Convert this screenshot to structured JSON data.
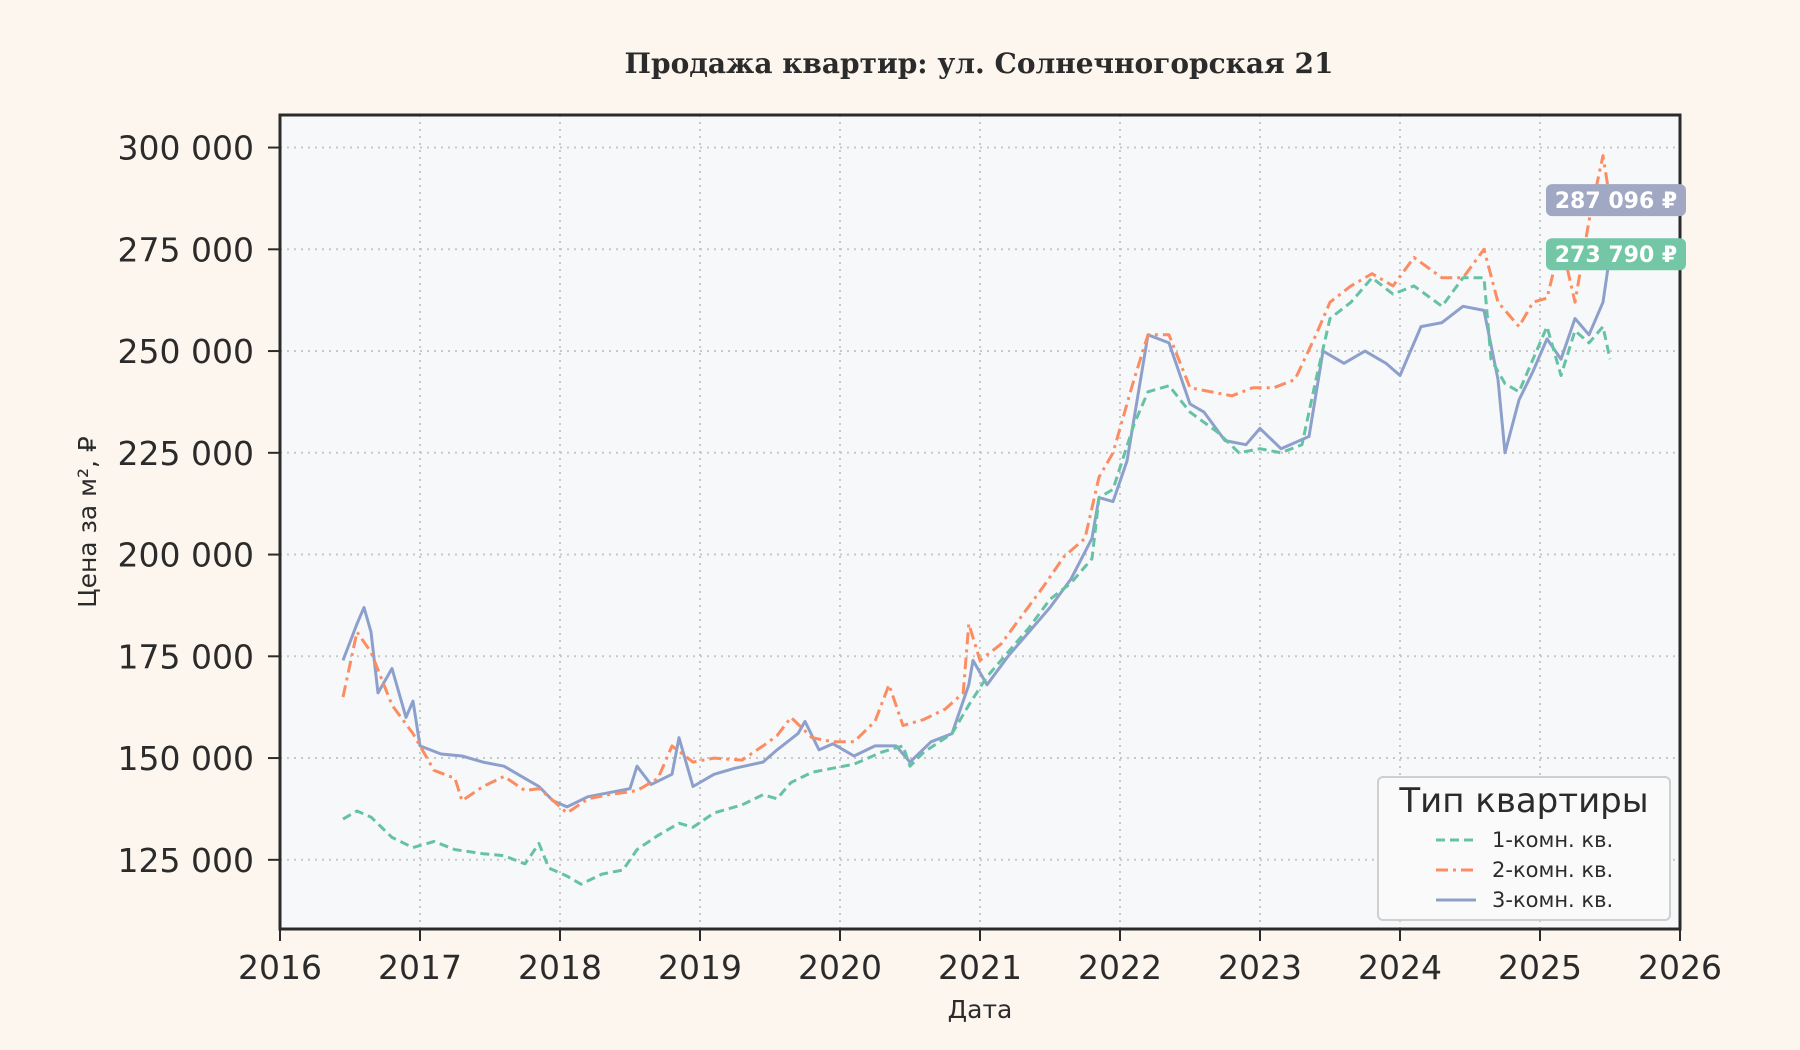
{
  "chart_data": {
    "type": "line",
    "title": "Продажа квартир: ул. Солнечногорская 21",
    "xlabel": "Дата",
    "ylabel": "Цена за м², ₽",
    "xlim": [
      2016,
      2026
    ],
    "ylim": [
      108000,
      308000
    ],
    "x_ticks": [
      2016,
      2017,
      2018,
      2019,
      2020,
      2021,
      2022,
      2023,
      2024,
      2025,
      2026
    ],
    "x_tick_labels": [
      "2016",
      "2017",
      "2018",
      "2019",
      "2020",
      "2021",
      "2022",
      "2023",
      "2024",
      "2025",
      "2026"
    ],
    "y_ticks": [
      125000,
      150000,
      175000,
      200000,
      225000,
      250000,
      275000,
      300000
    ],
    "y_tick_labels": [
      "125 000",
      "150 000",
      "175 000",
      "200 000",
      "225 000",
      "250 000",
      "275 000",
      "300 000"
    ],
    "grid": true,
    "legend": {
      "title": "Тип квартиры",
      "placement": "lower-right"
    },
    "series": [
      {
        "name": "1-комн. кв.",
        "color": "#66c2a5",
        "style": "dashed",
        "points": [
          [
            2016.45,
            135000
          ],
          [
            2016.55,
            137000
          ],
          [
            2016.65,
            135500
          ],
          [
            2016.8,
            130500
          ],
          [
            2016.95,
            128000
          ],
          [
            2017.1,
            129500
          ],
          [
            2017.25,
            127500
          ],
          [
            2017.45,
            126500
          ],
          [
            2017.6,
            126000
          ],
          [
            2017.75,
            124000
          ],
          [
            2017.85,
            129000
          ],
          [
            2017.92,
            123000
          ],
          [
            2018.05,
            121000
          ],
          [
            2018.15,
            119000
          ],
          [
            2018.3,
            121500
          ],
          [
            2018.45,
            122500
          ],
          [
            2018.55,
            127500
          ],
          [
            2018.7,
            131000
          ],
          [
            2018.85,
            134000
          ],
          [
            2018.95,
            133000
          ],
          [
            2019.1,
            136500
          ],
          [
            2019.3,
            138500
          ],
          [
            2019.45,
            141000
          ],
          [
            2019.55,
            140000
          ],
          [
            2019.65,
            144000
          ],
          [
            2019.8,
            146500
          ],
          [
            2019.95,
            147500
          ],
          [
            2020.1,
            148500
          ],
          [
            2020.3,
            151500
          ],
          [
            2020.45,
            153000
          ],
          [
            2020.5,
            148000
          ],
          [
            2020.6,
            151500
          ],
          [
            2020.8,
            156000
          ],
          [
            2020.92,
            163000
          ],
          [
            2021.05,
            170000
          ],
          [
            2021.2,
            176000
          ],
          [
            2021.35,
            182000
          ],
          [
            2021.5,
            189000
          ],
          [
            2021.65,
            193000
          ],
          [
            2021.8,
            199000
          ],
          [
            2021.85,
            214000
          ],
          [
            2021.95,
            216000
          ],
          [
            2022.1,
            232000
          ],
          [
            2022.2,
            240000
          ],
          [
            2022.35,
            241500
          ],
          [
            2022.5,
            235000
          ],
          [
            2022.7,
            230000
          ],
          [
            2022.85,
            225000
          ],
          [
            2023.0,
            226000
          ],
          [
            2023.15,
            225000
          ],
          [
            2023.3,
            227000
          ],
          [
            2023.4,
            243000
          ],
          [
            2023.5,
            258000
          ],
          [
            2023.65,
            262000
          ],
          [
            2023.8,
            268000
          ],
          [
            2023.95,
            264000
          ],
          [
            2024.1,
            266000
          ],
          [
            2024.3,
            261000
          ],
          [
            2024.45,
            268000
          ],
          [
            2024.6,
            268000
          ],
          [
            2024.65,
            248000
          ],
          [
            2024.75,
            242000
          ],
          [
            2024.85,
            240000
          ],
          [
            2024.95,
            248000
          ],
          [
            2025.05,
            256000
          ],
          [
            2025.15,
            244000
          ],
          [
            2025.25,
            255000
          ],
          [
            2025.35,
            252000
          ],
          [
            2025.45,
            256000
          ],
          [
            2025.5,
            248000
          ]
        ]
      },
      {
        "name": "2-комн. кв.",
        "color": "#fc8d62",
        "style": "dashdot",
        "points": [
          [
            2016.45,
            165000
          ],
          [
            2016.55,
            181000
          ],
          [
            2016.65,
            176000
          ],
          [
            2016.8,
            163000
          ],
          [
            2016.95,
            156000
          ],
          [
            2017.1,
            147000
          ],
          [
            2017.25,
            145000
          ],
          [
            2017.3,
            139500
          ],
          [
            2017.45,
            143000
          ],
          [
            2017.6,
            145500
          ],
          [
            2017.75,
            142000
          ],
          [
            2017.85,
            142500
          ],
          [
            2017.92,
            140500
          ],
          [
            2018.05,
            136500
          ],
          [
            2018.2,
            140000
          ],
          [
            2018.35,
            141000
          ],
          [
            2018.55,
            142000
          ],
          [
            2018.7,
            145000
          ],
          [
            2018.8,
            153000
          ],
          [
            2018.95,
            149000
          ],
          [
            2019.1,
            150000
          ],
          [
            2019.3,
            149500
          ],
          [
            2019.45,
            153000
          ],
          [
            2019.55,
            155500
          ],
          [
            2019.65,
            160000
          ],
          [
            2019.8,
            155000
          ],
          [
            2019.95,
            154000
          ],
          [
            2020.1,
            154000
          ],
          [
            2020.25,
            159000
          ],
          [
            2020.35,
            168000
          ],
          [
            2020.45,
            158000
          ],
          [
            2020.6,
            159500
          ],
          [
            2020.75,
            162000
          ],
          [
            2020.88,
            166000
          ],
          [
            2020.92,
            183000
          ],
          [
            2021.0,
            174000
          ],
          [
            2021.15,
            178000
          ],
          [
            2021.3,
            185000
          ],
          [
            2021.45,
            192000
          ],
          [
            2021.6,
            199500
          ],
          [
            2021.75,
            204000
          ],
          [
            2021.85,
            219000
          ],
          [
            2021.95,
            225000
          ],
          [
            2022.1,
            243000
          ],
          [
            2022.2,
            254000
          ],
          [
            2022.35,
            254000
          ],
          [
            2022.5,
            241000
          ],
          [
            2022.65,
            240000
          ],
          [
            2022.8,
            239000
          ],
          [
            2022.95,
            241000
          ],
          [
            2023.1,
            241000
          ],
          [
            2023.25,
            243000
          ],
          [
            2023.4,
            254000
          ],
          [
            2023.5,
            262000
          ],
          [
            2023.65,
            266000
          ],
          [
            2023.8,
            269000
          ],
          [
            2023.95,
            266000
          ],
          [
            2024.1,
            273000
          ],
          [
            2024.3,
            268000
          ],
          [
            2024.45,
            268000
          ],
          [
            2024.6,
            275000
          ],
          [
            2024.7,
            262000
          ],
          [
            2024.85,
            256000
          ],
          [
            2024.95,
            262000
          ],
          [
            2025.05,
            263000
          ],
          [
            2025.15,
            277000
          ],
          [
            2025.25,
            262000
          ],
          [
            2025.35,
            282000
          ],
          [
            2025.45,
            298000
          ],
          [
            2025.5,
            287096
          ]
        ]
      },
      {
        "name": "3-комн. кв.",
        "color": "#8da0cb",
        "style": "solid",
        "points": [
          [
            2016.45,
            174000
          ],
          [
            2016.55,
            183000
          ],
          [
            2016.6,
            187000
          ],
          [
            2016.65,
            181000
          ],
          [
            2016.7,
            166000
          ],
          [
            2016.8,
            172000
          ],
          [
            2016.9,
            160000
          ],
          [
            2016.95,
            164000
          ],
          [
            2017.0,
            153000
          ],
          [
            2017.15,
            151000
          ],
          [
            2017.3,
            150500
          ],
          [
            2017.45,
            149000
          ],
          [
            2017.6,
            148000
          ],
          [
            2017.75,
            145000
          ],
          [
            2017.85,
            143000
          ],
          [
            2017.95,
            139500
          ],
          [
            2018.05,
            138000
          ],
          [
            2018.2,
            140500
          ],
          [
            2018.35,
            141500
          ],
          [
            2018.5,
            142500
          ],
          [
            2018.55,
            148000
          ],
          [
            2018.65,
            143500
          ],
          [
            2018.8,
            146000
          ],
          [
            2018.85,
            155000
          ],
          [
            2018.95,
            143000
          ],
          [
            2019.1,
            146000
          ],
          [
            2019.25,
            147500
          ],
          [
            2019.45,
            149000
          ],
          [
            2019.55,
            152000
          ],
          [
            2019.7,
            156000
          ],
          [
            2019.75,
            159000
          ],
          [
            2019.85,
            152000
          ],
          [
            2019.95,
            153500
          ],
          [
            2020.1,
            150500
          ],
          [
            2020.25,
            153000
          ],
          [
            2020.4,
            153000
          ],
          [
            2020.5,
            149000
          ],
          [
            2020.65,
            154000
          ],
          [
            2020.8,
            156000
          ],
          [
            2020.92,
            168000
          ],
          [
            2020.95,
            174000
          ],
          [
            2021.05,
            168000
          ],
          [
            2021.2,
            175000
          ],
          [
            2021.35,
            181000
          ],
          [
            2021.5,
            187000
          ],
          [
            2021.65,
            194000
          ],
          [
            2021.8,
            204000
          ],
          [
            2021.85,
            214000
          ],
          [
            2021.95,
            213000
          ],
          [
            2022.05,
            223000
          ],
          [
            2022.2,
            254000
          ],
          [
            2022.35,
            252000
          ],
          [
            2022.5,
            237000
          ],
          [
            2022.6,
            235000
          ],
          [
            2022.75,
            228000
          ],
          [
            2022.9,
            227000
          ],
          [
            2023.0,
            231000
          ],
          [
            2023.15,
            226000
          ],
          [
            2023.35,
            229000
          ],
          [
            2023.45,
            250000
          ],
          [
            2023.6,
            247000
          ],
          [
            2023.75,
            250000
          ],
          [
            2023.9,
            247000
          ],
          [
            2024.0,
            244000
          ],
          [
            2024.15,
            256000
          ],
          [
            2024.3,
            257000
          ],
          [
            2024.45,
            261000
          ],
          [
            2024.6,
            260000
          ],
          [
            2024.7,
            243000
          ],
          [
            2024.75,
            225000
          ],
          [
            2024.85,
            238000
          ],
          [
            2024.95,
            245000
          ],
          [
            2025.05,
            253000
          ],
          [
            2025.15,
            248000
          ],
          [
            2025.25,
            258000
          ],
          [
            2025.35,
            254000
          ],
          [
            2025.45,
            262000
          ],
          [
            2025.5,
            273790
          ]
        ]
      }
    ],
    "badges": [
      {
        "label": "287 096 ₽",
        "value": 287096,
        "color": "#a0a8c4"
      },
      {
        "label": "273 790 ₽",
        "value": 273790,
        "color": "#73c6a6"
      }
    ]
  }
}
